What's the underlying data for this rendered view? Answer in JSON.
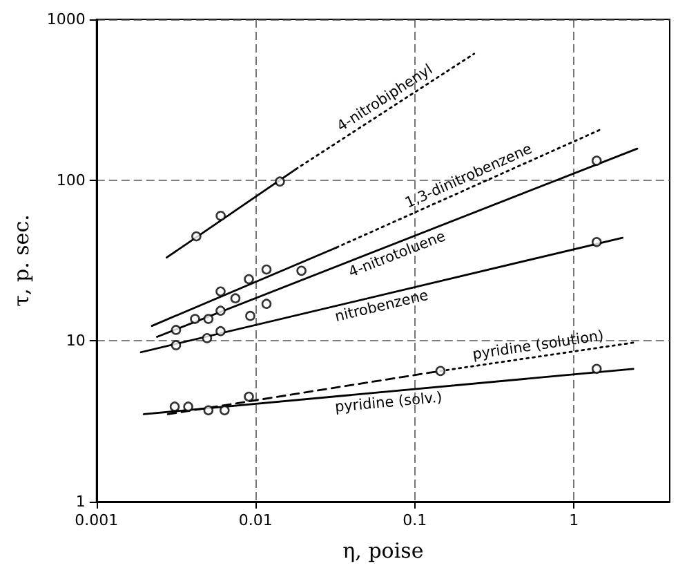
{
  "chart_data": {
    "type": "scatter",
    "xlabel": "η, poise",
    "ylabel": "τ, p. sec.",
    "log": "xy",
    "grid": true,
    "xlim": [
      0.001,
      4
    ],
    "xticks": [
      0.001,
      0.01,
      0.1,
      1
    ],
    "ylim": [
      1,
      1000
    ],
    "yticks": [
      1,
      10,
      100,
      1000
    ],
    "series": [
      {
        "type": "line",
        "color": "#000000",
        "marker": "none",
        "line_style": "solid",
        "x": [
          0.00276,
          0.0179
        ],
        "values": [
          33,
          117
        ]
      },
      {
        "type": "line",
        "name": "4-nitrobiphenyl",
        "color": "#000000",
        "marker": "none",
        "line_style": "dotted",
        "x": [
          0.0179,
          0.236
        ],
        "values": [
          117,
          611
        ]
      },
      {
        "type": "line",
        "color": "#000000",
        "marker": "none",
        "line_style": "solid",
        "x": [
          0.00223,
          0.0322
        ],
        "values": [
          12.4,
          38.1
        ]
      },
      {
        "type": "line",
        "name": "1,3-dinitrobenzene",
        "color": "#000000",
        "marker": "none",
        "line_style": "dotted",
        "x": [
          0.0322,
          1.48
        ],
        "values": [
          38.1,
          207
        ]
      },
      {
        "type": "line",
        "name": "4-nitrotoluene",
        "color": "#000000",
        "marker": "none",
        "line_style": "solid",
        "x": [
          0.0024,
          2.5
        ],
        "values": [
          10.6,
          157
        ]
      },
      {
        "type": "line",
        "name": "nitrobenzene",
        "color": "#000000",
        "marker": "none",
        "line_style": "solid",
        "x": [
          0.0019,
          2.02
        ],
        "values": [
          8.5,
          43.8
        ]
      },
      {
        "type": "line",
        "color": "#000000",
        "marker": "none",
        "line_style": "dashed",
        "x": [
          0.00281,
          0.145
        ],
        "values": [
          3.5,
          6.5
        ]
      },
      {
        "type": "line",
        "name": "pyridine (solution)",
        "color": "#000000",
        "marker": "none",
        "line_style": "dotted",
        "x": [
          0.145,
          2.45
        ],
        "values": [
          6.5,
          9.8
        ]
      },
      {
        "type": "line",
        "name": "pyridine (solv.)",
        "color": "#000000",
        "marker": "none",
        "line_style": "solid",
        "x": [
          0.00198,
          2.36
        ],
        "values": [
          3.5,
          6.7
        ]
      },
      {
        "color": "#000000",
        "marker": "circle",
        "x": [
          0.00424,
          0.00603,
          0.0142
        ],
        "values": [
          44.7,
          60,
          98
        ]
      },
      {
        "color": "#000000",
        "marker": "circle",
        "x": [
          0.00505,
          0.00602,
          0.00907,
          0.0117
        ],
        "values": [
          13.7,
          20.3,
          24.2,
          27.8
        ]
      },
      {
        "color": "#000000",
        "marker": "circle",
        "x": [
          0.00316,
          0.00416,
          0.00602,
          0.00746,
          0.0194,
          1.39
        ],
        "values": [
          11.7,
          13.7,
          15.4,
          18.4,
          27.3,
          132
        ]
      },
      {
        "color": "#000000",
        "marker": "circle",
        "x": [
          0.00316,
          0.00495,
          0.00602,
          0.00925,
          0.0117,
          1.39
        ],
        "values": [
          9.4,
          10.4,
          11.5,
          14.3,
          17,
          41.2
        ]
      },
      {
        "color": "#000000",
        "marker": "circle",
        "x": [
          0.0031,
          0.00638,
          0.00907,
          1.39
        ],
        "values": [
          3.9,
          3.7,
          4.5,
          6.7
        ]
      },
      {
        "color": "#000000",
        "marker": "circle",
        "x": [
          0.00377,
          0.00505,
          0.145
        ],
        "values": [
          3.9,
          3.7,
          6.5
        ]
      }
    ]
  }
}
